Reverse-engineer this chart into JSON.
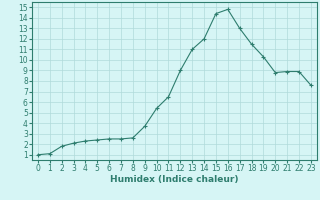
{
  "x_values": [
    0,
    1,
    2,
    3,
    4,
    5,
    6,
    7,
    8,
    9,
    10,
    11,
    12,
    13,
    14,
    15,
    16,
    17,
    18,
    19,
    20,
    21,
    22,
    23
  ],
  "y_values": [
    1.0,
    1.1,
    1.8,
    2.1,
    2.3,
    2.4,
    2.5,
    2.5,
    2.6,
    3.7,
    5.4,
    6.5,
    9.0,
    11.0,
    12.0,
    14.4,
    14.8,
    13.0,
    11.5,
    10.3,
    8.8,
    8.9,
    8.9,
    7.6
  ],
  "line_color": "#2e7d6e",
  "marker": "+",
  "marker_size": 3.0,
  "bg_color": "#d6f5f5",
  "grid_color": "#b0dada",
  "xlabel": "Humidex (Indice chaleur)",
  "xlim": [
    -0.5,
    23.5
  ],
  "ylim": [
    0.5,
    15.5
  ],
  "yticks": [
    1,
    2,
    3,
    4,
    5,
    6,
    7,
    8,
    9,
    10,
    11,
    12,
    13,
    14,
    15
  ],
  "xticks": [
    0,
    1,
    2,
    3,
    4,
    5,
    6,
    7,
    8,
    9,
    10,
    11,
    12,
    13,
    14,
    15,
    16,
    17,
    18,
    19,
    20,
    21,
    22,
    23
  ],
  "tick_color": "#2e7d6e",
  "axis_color": "#2e7d6e",
  "label_fontsize": 6.5,
  "tick_fontsize": 5.5
}
